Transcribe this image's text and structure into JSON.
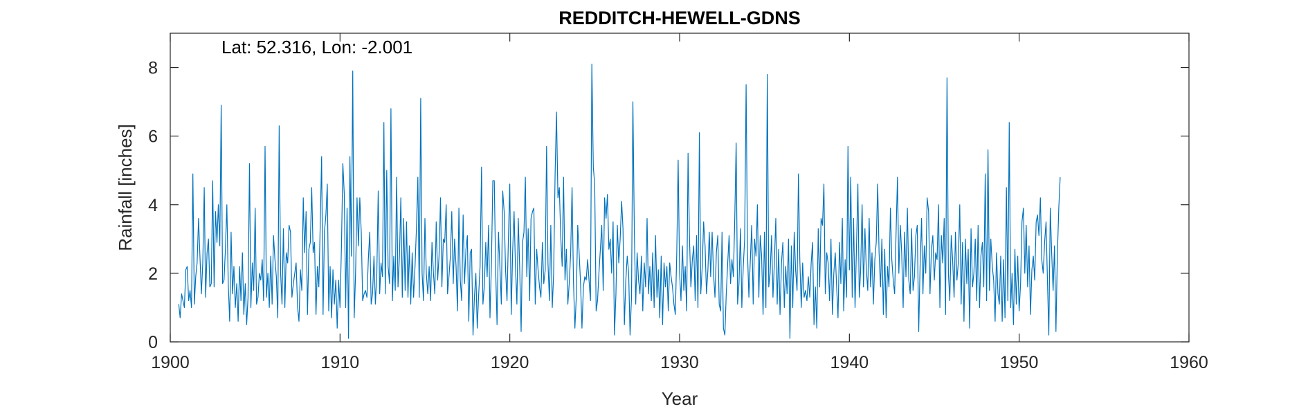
{
  "chart_data": {
    "type": "line",
    "title": "REDDITCH-HEWELL-GDNS",
    "xlabel": "Year",
    "ylabel": "Rainfall [inches]",
    "annotation": "Lat: 52.316, Lon: -2.001",
    "xlim": [
      1900,
      1960
    ],
    "ylim": [
      0,
      9
    ],
    "xticks": [
      1900,
      1910,
      1920,
      1930,
      1940,
      1950,
      1960
    ],
    "yticks": [
      0,
      2,
      4,
      6,
      8
    ],
    "grid": false,
    "line_color": "#0072BD",
    "x_start": 1900.5,
    "x_step": 0.08333,
    "series": [
      {
        "values": [
          1.1,
          0.7,
          1.4,
          1.2,
          1.0,
          2.1,
          2.2,
          1.2,
          1.5,
          1.0,
          4.9,
          1.1,
          1.9,
          2.3,
          3.6,
          2.5,
          1.4,
          2.3,
          4.5,
          1.3,
          2.6,
          3.0,
          1.6,
          1.7,
          4.7,
          1.6,
          3.8,
          2.9,
          4.0,
          2.8,
          6.9,
          1.7,
          1.8,
          2.7,
          4.0,
          1.7,
          0.6,
          3.2,
          1.4,
          2.2,
          1.0,
          1.7,
          0.6,
          2.2,
          1.2,
          2.6,
          0.8,
          1.7,
          0.5,
          1.3,
          5.2,
          1.0,
          2.3,
          1.5,
          3.9,
          1.1,
          1.3,
          2.0,
          1.8,
          2.4,
          1.2,
          5.7,
          1.3,
          2.0,
          1.0,
          2.5,
          1.1,
          3.1,
          2.4,
          1.9,
          0.7,
          6.3,
          2.0,
          1.1,
          3.3,
          1.0,
          2.6,
          2.3,
          3.4,
          3.2,
          1.3,
          1.7,
          2.0,
          2.3,
          1.0,
          0.6,
          2.1,
          1.5,
          4.2,
          2.6,
          3.8,
          0.8,
          2.7,
          2.9,
          4.5,
          2.6,
          2.9,
          0.8,
          2.2,
          1.6,
          3.4,
          5.4,
          0.8,
          3.2,
          3.7,
          4.6,
          0.9,
          2.2,
          0.7,
          2.1,
          1.1,
          1.8,
          0.4,
          1.8,
          1.0,
          2.8,
          5.2,
          4.3,
          1.0,
          3.9,
          0.1,
          5.4,
          2.5,
          7.9,
          0.7,
          2.0,
          4.2,
          2.8,
          4.2,
          3.2,
          1.2,
          1.4,
          1.5,
          1.3,
          2.4,
          3.2,
          1.1,
          1.4,
          2.5,
          1.1,
          2.0,
          4.4,
          1.4,
          2.3,
          1.9,
          6.4,
          1.4,
          5.0,
          2.2,
          1.7,
          6.8,
          1.2,
          2.5,
          1.5,
          4.8,
          1.6,
          2.5,
          4.2,
          1.3,
          3.6,
          1.5,
          3.5,
          1.3,
          2.8,
          1.1,
          2.6,
          1.3,
          2.2,
          3.3,
          4.8,
          1.3,
          7.1,
          2.0,
          1.2,
          3.6,
          2.0,
          1.4,
          2.2,
          1.2,
          2.9,
          2.0,
          1.4,
          3.5,
          1.8,
          2.5,
          4.2,
          1.6,
          3.0,
          2.9,
          4.0,
          1.4,
          1.9,
          2.5,
          3.8,
          1.7,
          3.0,
          2.2,
          0.9,
          3.9,
          1.8,
          1.2,
          3.7,
          1.7,
          2.7,
          3.1,
          0.6,
          2.6,
          2.7,
          0.2,
          1.3,
          2.0,
          0.4,
          1.4,
          2.2,
          5.1,
          1.1,
          1.6,
          2.9,
          1.9,
          3.4,
          0.7,
          2.3,
          4.7,
          4.7,
          2.1,
          0.5,
          3.2,
          2.2,
          1.1,
          4.4,
          3.8,
          2.1,
          1.2,
          3.0,
          4.6,
          0.8,
          2.6,
          3.8,
          2.2,
          1.1,
          3.6,
          2.1,
          0.3,
          2.9,
          3.2,
          4.8,
          1.9,
          3.3,
          1.2,
          3.6,
          3.8,
          3.9,
          1.1,
          2.7,
          2.1,
          1.6,
          1.3,
          2.9,
          1.7,
          2.1,
          5.7,
          2.3,
          1.2,
          3.4,
          1.0,
          2.0,
          4.9,
          6.7,
          4.2,
          4.5,
          3.1,
          2.2,
          4.8,
          1.8,
          2.7,
          1.1,
          1.7,
          2.6,
          4.5,
          1.8,
          0.4,
          1.3,
          3.4,
          2.6,
          1.7,
          0.4,
          1.6,
          1.9,
          1.8,
          2.4,
          1.8,
          1.2,
          8.1,
          5.1,
          4.6,
          0.9,
          1.2,
          2.0,
          2.7,
          3.4,
          1.5,
          4.2,
          3.6,
          4.3,
          2.7,
          3.0,
          2.0,
          3.5,
          0.2,
          1.4,
          3.4,
          2.3,
          3.0,
          4.1,
          3.3,
          0.5,
          1.8,
          2.5,
          2.0,
          0.2,
          1.3,
          7.0,
          3.2,
          1.1,
          2.6,
          1.8,
          1.4,
          2.5,
          0.9,
          2.3,
          1.6,
          3.6,
          1.4,
          2.2,
          1.2,
          2.6,
          1.0,
          3.1,
          1.3,
          2.1,
          0.7,
          2.5,
          0.5,
          2.3,
          1.6,
          2.2,
          0.9,
          2.3,
          1.9,
          1.6,
          1.1,
          0.8,
          2.6,
          5.3,
          2.0,
          1.2,
          2.8,
          1.5,
          2.2,
          0.9,
          5.5,
          3.0,
          1.6,
          2.4,
          2.8,
          1.2,
          3.1,
          1.0,
          6.1,
          1.4,
          2.2,
          3.5,
          2.8,
          1.4,
          2.1,
          3.2,
          1.9,
          3.2,
          2.0,
          1.3,
          2.6,
          3.1,
          1.1,
          0.9,
          3.2,
          0.4,
          0.2,
          1.4,
          2.3,
          3.1,
          1.7,
          2.4,
          1.9,
          3.6,
          5.8,
          1.1,
          1.7,
          3.3,
          1.0,
          2.2,
          3.0,
          7.5,
          2.6,
          1.3,
          2.4,
          3.4,
          1.1,
          3.0,
          2.5,
          4.0,
          1.3,
          3.1,
          2.5,
          0.8,
          3.2,
          1.0,
          7.8,
          1.6,
          2.0,
          3.1,
          1.3,
          2.3,
          3.6,
          1.1,
          2.7,
          0.8,
          2.3,
          2.9,
          1.0,
          2.2,
          1.4,
          3.0,
          0.1,
          2.8,
          1.0,
          3.2,
          2.1,
          1.5,
          4.9,
          2.4,
          1.0,
          2.3,
          1.3,
          1.5,
          1.2,
          1.9,
          1.3,
          2.3,
          2.9,
          0.5,
          1.6,
          0.4,
          3.3,
          1.6,
          3.6,
          3.4,
          4.6,
          1.4,
          2.6,
          2.3,
          1.2,
          3.0,
          0.8,
          2.0,
          2.6,
          1.6,
          0.7,
          2.9,
          1.7,
          3.6,
          0.9,
          2.4,
          1.3,
          5.7,
          2.1,
          4.8,
          1.3,
          3.6,
          1.0,
          2.7,
          4.6,
          1.3,
          2.1,
          4.0,
          1.6,
          3.3,
          2.1,
          1.5,
          3.6,
          1.6,
          2.6,
          1.1,
          2.4,
          2.9,
          4.6,
          2.6,
          1.6,
          3.0,
          0.8,
          2.7,
          0.7,
          2.2,
          1.6,
          3.9,
          2.4,
          1.8,
          1.4,
          3.2,
          4.8,
          2.0,
          3.4,
          2.6,
          1.0,
          3.2,
          1.9,
          3.9,
          1.8,
          1.4,
          3.3,
          1.5,
          1.9,
          3.1,
          3.4,
          0.3,
          2.2,
          3.6,
          1.4,
          2.8,
          2.0,
          4.2,
          3.8,
          1.4,
          2.7,
          3.1,
          1.8,
          2.6,
          2.4,
          4.0,
          1.0,
          3.1,
          2.3,
          3.6,
          0.8,
          7.7,
          2.0,
          1.2,
          3.1,
          2.4,
          1.3,
          3.2,
          1.8,
          2.3,
          4.0,
          1.1,
          2.9,
          0.6,
          3.0,
          1.7,
          2.7,
          0.4,
          3.3,
          1.6,
          2.0,
          3.0,
          1.2,
          3.4,
          1.0,
          2.5,
          2.9,
          1.6,
          4.9,
          1.2,
          5.6,
          1.5,
          3.0,
          2.2,
          1.8,
          0.6,
          2.6,
          1.4,
          1.1,
          2.5,
          0.6,
          2.4,
          0.7,
          4.5,
          1.2,
          6.4,
          1.0,
          2.0,
          0.5,
          2.7,
          1.1,
          2.5,
          0.9,
          1.7,
          3.5,
          3.9,
          2.0,
          3.4,
          1.6,
          2.8,
          0.8,
          2.1,
          2.5,
          1.8,
          3.5,
          3.7,
          3.1,
          4.2,
          2.4,
          2.0,
          2.9,
          3.5,
          1.8,
          0.2,
          3.9,
          2.6,
          1.5,
          2.8,
          0.3,
          2.5,
          3.9,
          4.8
        ]
      }
    ]
  }
}
